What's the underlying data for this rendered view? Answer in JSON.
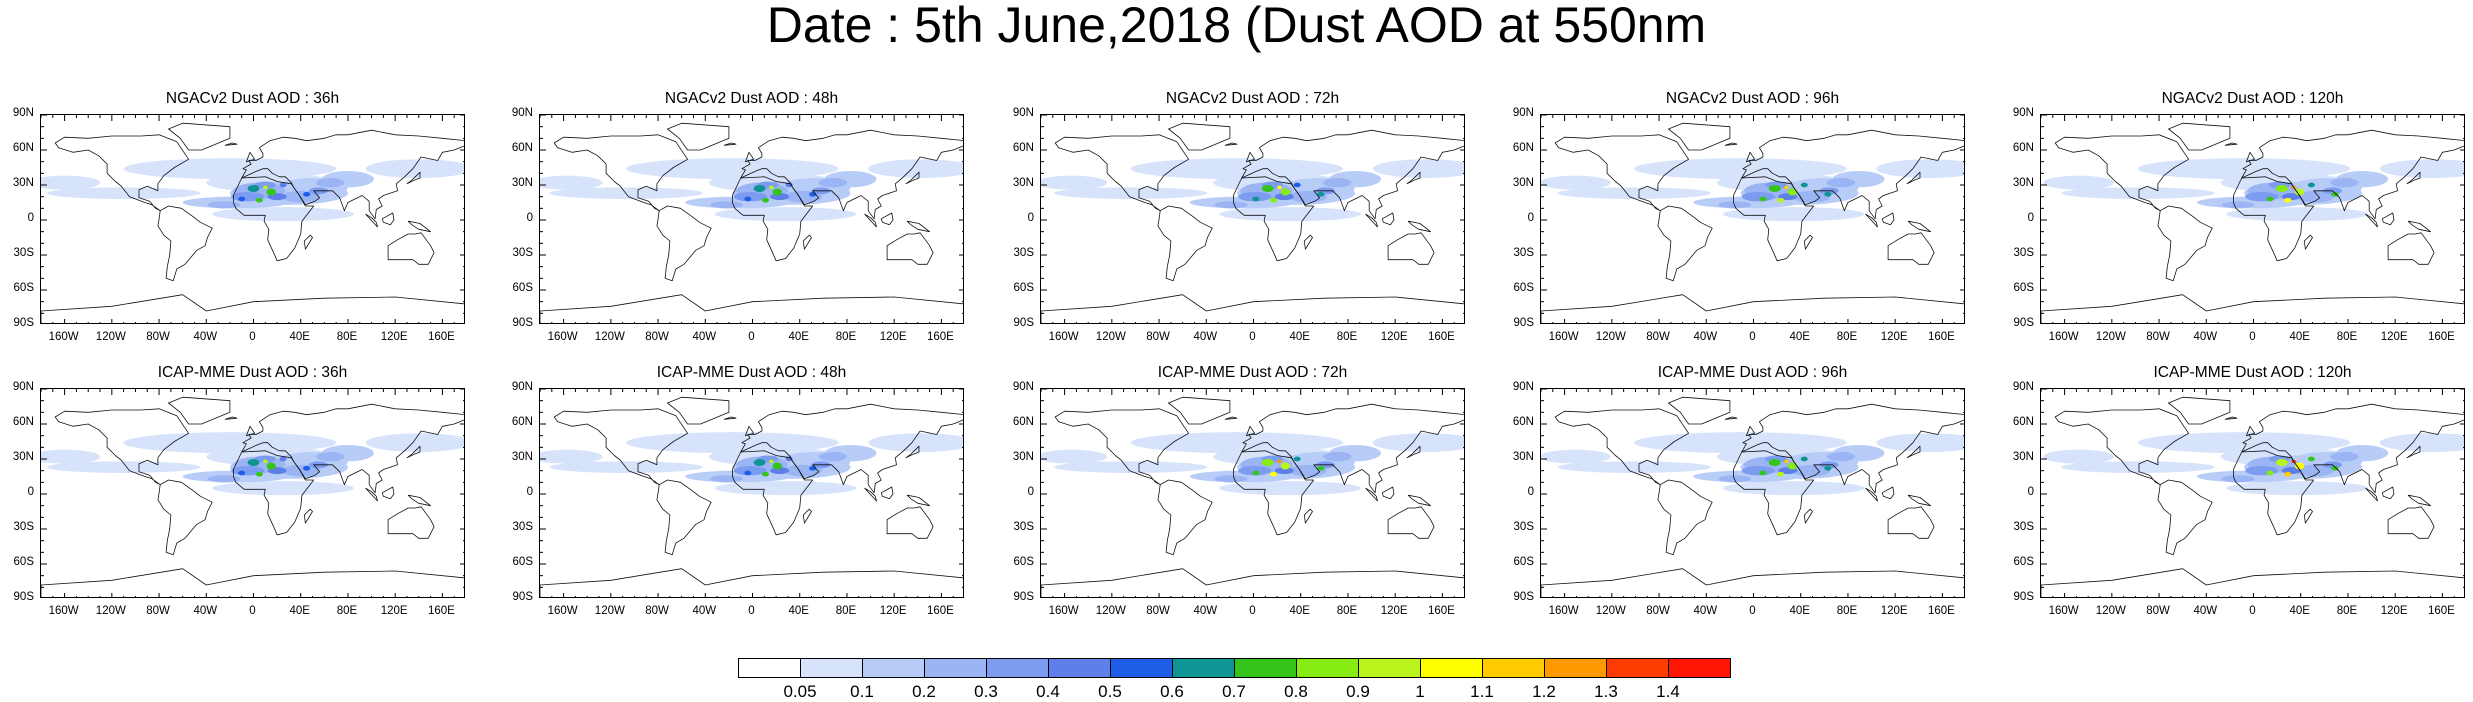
{
  "title": "Date : 5th June,2018 (Dust AOD at 550nm",
  "latitude_ticks": [
    "90N",
    "60N",
    "30N",
    "0",
    "30S",
    "60S",
    "90S"
  ],
  "longitude_ticks": [
    "160W",
    "120W",
    "80W",
    "40W",
    "0",
    "40E",
    "80E",
    "120E",
    "160E"
  ],
  "panels": [
    {
      "title": "NGACv2 Dust AOD : 36h",
      "model": "NGACv2",
      "lead_hours": 36,
      "peak_level": 0.9
    },
    {
      "title": "NGACv2 Dust AOD : 48h",
      "model": "NGACv2",
      "lead_hours": 48,
      "peak_level": 0.9
    },
    {
      "title": "NGACv2 Dust AOD : 72h",
      "model": "NGACv2",
      "lead_hours": 72,
      "peak_level": 1.0
    },
    {
      "title": "NGACv2 Dust AOD : 96h",
      "model": "NGACv2",
      "lead_hours": 96,
      "peak_level": 1.1
    },
    {
      "title": "NGACv2 Dust AOD : 120h",
      "model": "NGACv2",
      "lead_hours": 120,
      "peak_level": 1.2
    },
    {
      "title": "ICAP-MME Dust AOD : 36h",
      "model": "ICAP-MME",
      "lead_hours": 36,
      "peak_level": 0.9
    },
    {
      "title": "ICAP-MME Dust AOD : 48h",
      "model": "ICAP-MME",
      "lead_hours": 48,
      "peak_level": 0.9
    },
    {
      "title": "ICAP-MME Dust AOD : 72h",
      "model": "ICAP-MME",
      "lead_hours": 72,
      "peak_level": 1.2
    },
    {
      "title": "ICAP-MME Dust AOD : 96h",
      "model": "ICAP-MME",
      "lead_hours": 96,
      "peak_level": 1.1
    },
    {
      "title": "ICAP-MME Dust AOD : 120h",
      "model": "ICAP-MME",
      "lead_hours": 120,
      "peak_level": 1.3
    }
  ],
  "colorbar": {
    "labels": [
      "0.05",
      "0.1",
      "0.2",
      "0.3",
      "0.4",
      "0.5",
      "0.6",
      "0.7",
      "0.8",
      "0.9",
      "1",
      "1.1",
      "1.2",
      "1.3",
      "1.4"
    ],
    "colors": [
      "#ffffff",
      "#d7e3fb",
      "#b8ccf8",
      "#9ab4f4",
      "#7c9cf0",
      "#5e7ee8",
      "#1e5ee6",
      "#0e9494",
      "#35c41c",
      "#86ec12",
      "#b9f51c",
      "#ffff00",
      "#ffcc00",
      "#ff9900",
      "#ff3c00",
      "#ff1600"
    ]
  }
}
